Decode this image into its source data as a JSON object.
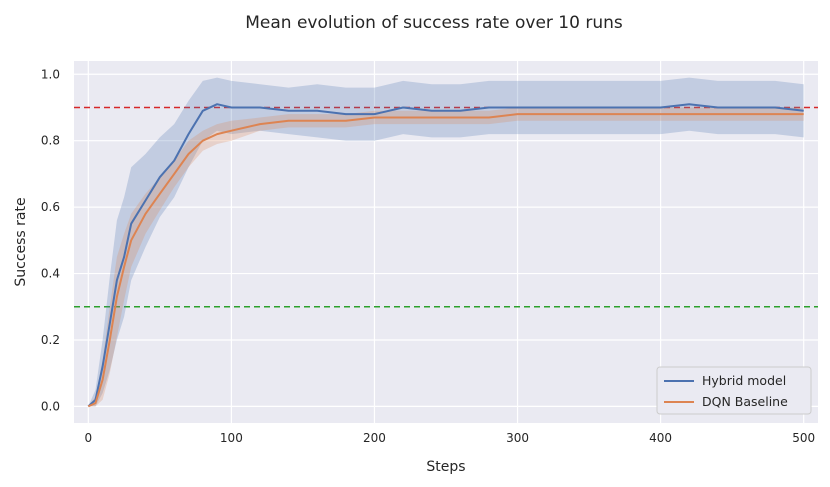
{
  "chart_data": {
    "type": "line",
    "title": "Mean evolution of success rate over 10 runs",
    "xlabel": "Steps",
    "ylabel": "Success rate",
    "xlim": [
      -10,
      510
    ],
    "ylim": [
      -0.05,
      1.04
    ],
    "xticks": [
      0,
      100,
      200,
      300,
      400,
      500
    ],
    "yticks": [
      0.0,
      0.2,
      0.4,
      0.6,
      0.8,
      1.0
    ],
    "xtick_labels": [
      "0",
      "100",
      "200",
      "300",
      "400",
      "500"
    ],
    "ytick_labels": [
      "0.0",
      "0.2",
      "0.4",
      "0.6",
      "0.8",
      "1.0"
    ],
    "grid": true,
    "legend_position": "lower-right",
    "reference_lines": [
      {
        "y": 0.9,
        "color": "#d62728",
        "style": "dashed"
      },
      {
        "y": 0.3,
        "color": "#2ca02c",
        "style": "dashed"
      }
    ],
    "x": [
      0,
      5,
      10,
      15,
      20,
      25,
      30,
      40,
      50,
      60,
      70,
      80,
      90,
      100,
      120,
      140,
      160,
      180,
      200,
      220,
      240,
      260,
      280,
      300,
      320,
      340,
      360,
      380,
      400,
      420,
      440,
      460,
      480,
      500
    ],
    "series": [
      {
        "name": "Hybrid model",
        "color": "#4c72b0",
        "values": [
          0.0,
          0.02,
          0.12,
          0.25,
          0.38,
          0.45,
          0.55,
          0.62,
          0.69,
          0.74,
          0.82,
          0.89,
          0.91,
          0.9,
          0.9,
          0.89,
          0.89,
          0.88,
          0.88,
          0.9,
          0.89,
          0.89,
          0.9,
          0.9,
          0.9,
          0.9,
          0.9,
          0.9,
          0.9,
          0.91,
          0.9,
          0.9,
          0.9,
          0.89
        ],
        "band": [
          0.0,
          0.03,
          0.08,
          0.14,
          0.18,
          0.18,
          0.17,
          0.14,
          0.12,
          0.11,
          0.1,
          0.09,
          0.08,
          0.08,
          0.07,
          0.07,
          0.08,
          0.08,
          0.08,
          0.08,
          0.08,
          0.08,
          0.08,
          0.08,
          0.08,
          0.08,
          0.08,
          0.08,
          0.08,
          0.08,
          0.08,
          0.08,
          0.08,
          0.08
        ]
      },
      {
        "name": "DQN Baseline",
        "color": "#dd8452",
        "values": [
          0.0,
          0.01,
          0.08,
          0.2,
          0.33,
          0.42,
          0.5,
          0.58,
          0.64,
          0.7,
          0.76,
          0.8,
          0.82,
          0.83,
          0.85,
          0.86,
          0.86,
          0.86,
          0.87,
          0.87,
          0.87,
          0.87,
          0.87,
          0.88,
          0.88,
          0.88,
          0.88,
          0.88,
          0.88,
          0.88,
          0.88,
          0.88,
          0.88,
          0.88
        ],
        "band": [
          0.0,
          0.02,
          0.06,
          0.1,
          0.12,
          0.1,
          0.08,
          0.06,
          0.05,
          0.04,
          0.04,
          0.03,
          0.03,
          0.03,
          0.02,
          0.02,
          0.02,
          0.02,
          0.02,
          0.02,
          0.02,
          0.02,
          0.02,
          0.02,
          0.02,
          0.02,
          0.02,
          0.02,
          0.02,
          0.02,
          0.02,
          0.02,
          0.02,
          0.02
        ]
      }
    ]
  }
}
